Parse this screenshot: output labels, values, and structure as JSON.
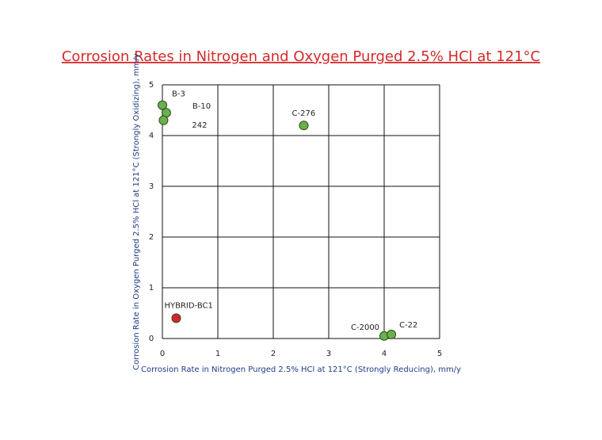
{
  "chart_data": {
    "type": "scatter",
    "title": "Corrosion Rates in Nitrogen and Oxygen Purged 2.5% HCl at 121°C",
    "x_label": "Corrosion Rate in Nitrogen Purged 2.5% HCl at 121°C (Strongly Reducing), mm/y",
    "y_label": "Corrosion Rate in Oxygen Purged 2.5% HCl at 121°C (Strongly Oxidizing), mm/y",
    "point_labels": [
      "B-3",
      "B-10",
      "242",
      "C-276",
      "HYBRID-BC1",
      "C-2000",
      "C-22"
    ],
    "x": [
      0,
      0.07,
      0.02,
      2.55,
      0.25,
      4.0,
      4.13
    ],
    "y": [
      4.6,
      4.45,
      4.3,
      4.2,
      0.4,
      0.05,
      0.08
    ],
    "colors": [
      "#6ab04c",
      "#6ab04c",
      "#6ab04c",
      "#6ab04c",
      "#d9232a",
      "#6ab04c",
      "#6ab04c"
    ],
    "xlim": [
      0,
      5
    ],
    "ylim": [
      0,
      5
    ],
    "xticks": [
      0,
      1,
      2,
      3,
      4,
      5
    ],
    "yticks": [
      0,
      1,
      2,
      3,
      4,
      5
    ],
    "grid": true
  }
}
